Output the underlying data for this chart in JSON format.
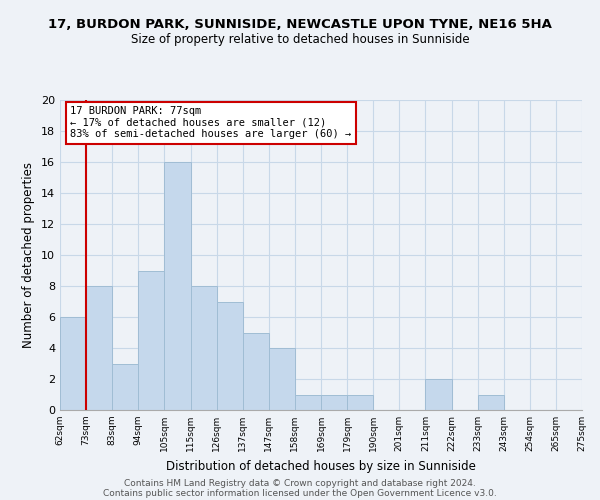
{
  "title": "17, BURDON PARK, SUNNISIDE, NEWCASTLE UPON TYNE, NE16 5HA",
  "subtitle": "Size of property relative to detached houses in Sunniside",
  "xlabel": "Distribution of detached houses by size in Sunniside",
  "ylabel": "Number of detached properties",
  "bar_color": "#c5d8ec",
  "bar_edge_color": "#a0bdd4",
  "bins": [
    "62sqm",
    "73sqm",
    "83sqm",
    "94sqm",
    "105sqm",
    "115sqm",
    "126sqm",
    "137sqm",
    "147sqm",
    "158sqm",
    "169sqm",
    "179sqm",
    "190sqm",
    "201sqm",
    "211sqm",
    "222sqm",
    "233sqm",
    "243sqm",
    "254sqm",
    "265sqm",
    "275sqm"
  ],
  "values": [
    6,
    8,
    3,
    9,
    16,
    8,
    7,
    5,
    4,
    1,
    1,
    1,
    0,
    0,
    2,
    0,
    1,
    0,
    0,
    0
  ],
  "ylim": [
    0,
    20
  ],
  "yticks": [
    0,
    2,
    4,
    6,
    8,
    10,
    12,
    14,
    16,
    18,
    20
  ],
  "annotation_title": "17 BURDON PARK: 77sqm",
  "annotation_line1": "← 17% of detached houses are smaller (12)",
  "annotation_line2": "83% of semi-detached houses are larger (60) →",
  "annotation_box_color": "#ffffff",
  "annotation_box_edge": "#cc0000",
  "vline_color": "#cc0000",
  "grid_color": "#c8d8e8",
  "background_color": "#eef2f7",
  "footer1": "Contains HM Land Registry data © Crown copyright and database right 2024.",
  "footer2": "Contains public sector information licensed under the Open Government Licence v3.0."
}
